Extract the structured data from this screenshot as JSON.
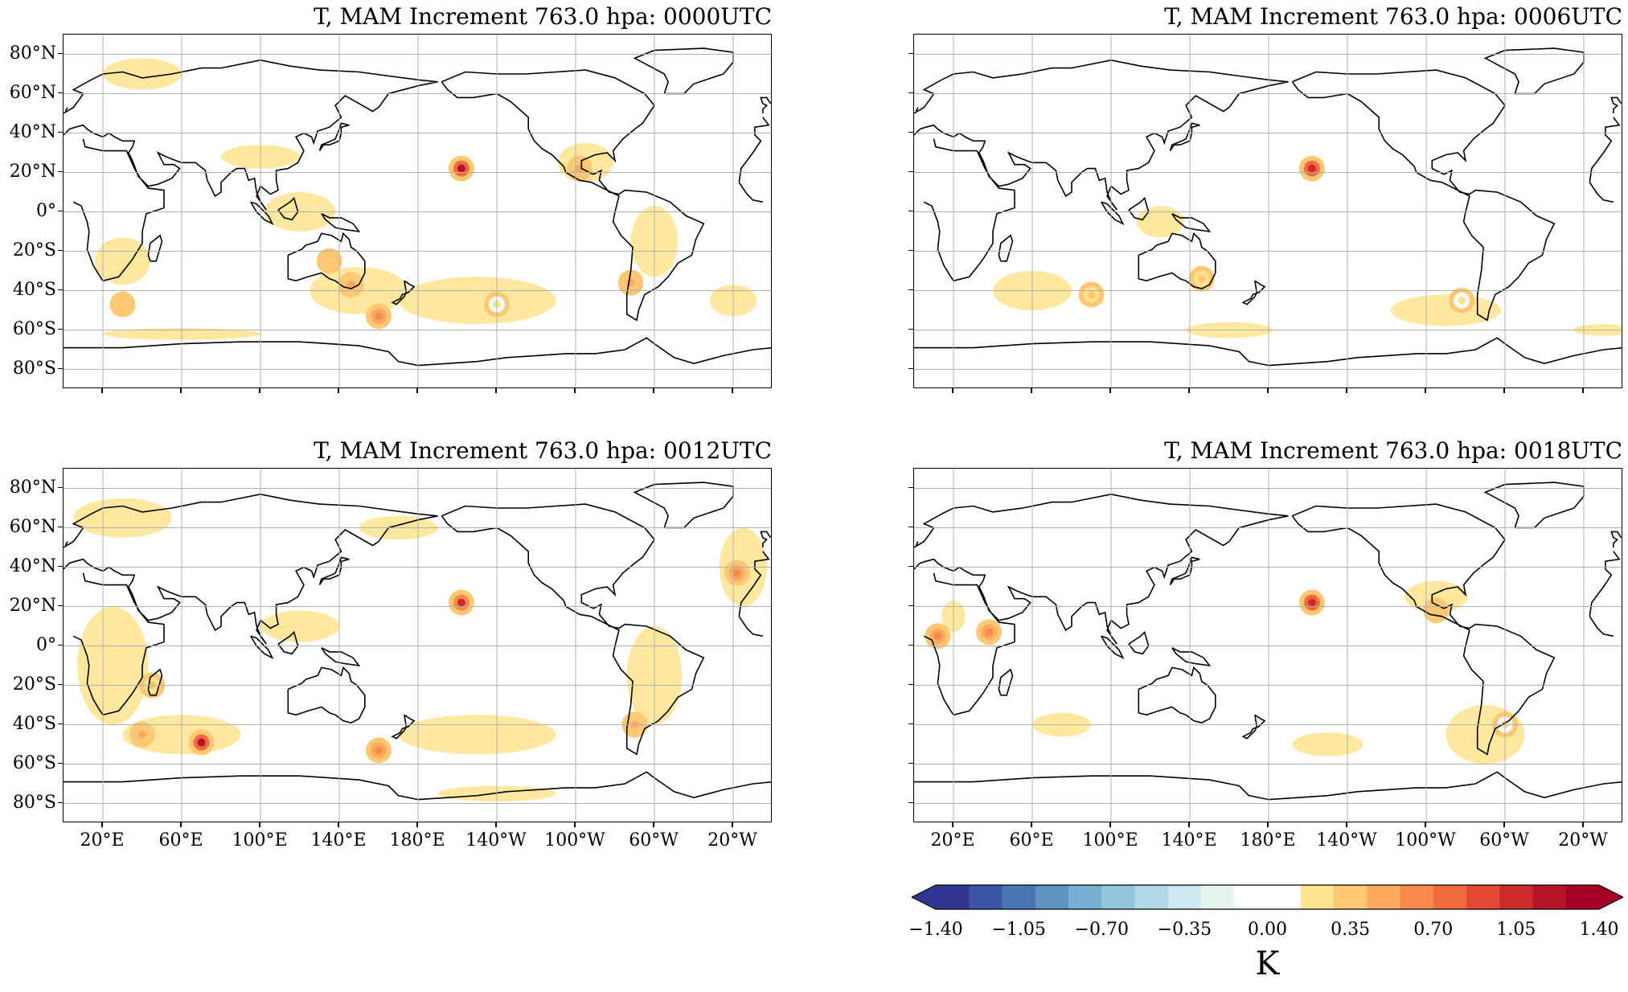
{
  "panels": [
    {
      "title": "T, MAM Increment 763.0 hpa: 0000UTC",
      "show_lon_labels": false,
      "show_lat_labels": true
    },
    {
      "title": "T, MAM Increment 763.0 hpa: 0006UTC",
      "show_lon_labels": false,
      "show_lat_labels": false
    },
    {
      "title": "T, MAM Increment 763.0 hpa: 0012UTC",
      "show_lon_labels": true,
      "show_lat_labels": true
    },
    {
      "title": "T, MAM Increment 763.0 hpa: 0018UTC",
      "show_lon_labels": true,
      "show_lat_labels": false
    }
  ],
  "lat_labels": [
    "80°N",
    "60°N",
    "40°N",
    "20°N",
    "0°",
    "20°S",
    "40°S",
    "60°S",
    "80°S"
  ],
  "lon_labels": [
    "20°E",
    "60°E",
    "100°E",
    "140°E",
    "180°E",
    "140°W",
    "100°W",
    "60°W",
    "20°W"
  ],
  "colorbar": {
    "unit": "K",
    "tick_labels": [
      "−1.40",
      "−1.05",
      "−0.70",
      "−0.35",
      "0.00",
      "0.35",
      "0.70",
      "1.05",
      "1.40"
    ],
    "colors": [
      "#313695",
      "#3a55a3",
      "#4a74b4",
      "#5f93c2",
      "#77aed3",
      "#93c5df",
      "#b0d9e8",
      "#cde8ef",
      "#e6f4f0",
      "#ffffff",
      "#ffffff",
      "#fee48f",
      "#fdc874",
      "#fcaa60",
      "#f98a4e",
      "#f06a40",
      "#e24a33",
      "#cb2b29",
      "#b31427",
      "#a50026"
    ],
    "extend": "both"
  },
  "chart_data": [
    {
      "type": "heatmap",
      "title": "T, MAM Increment 763.0 hpa: 0000UTC",
      "unit": "K",
      "vmin": -1.4,
      "vmax": 1.4,
      "features": [
        {
          "lon": -158,
          "lat": 22,
          "value": 1.2
        },
        {
          "lon": 146,
          "lat": -37,
          "value": 0.5
        },
        {
          "lon": 160,
          "lat": -53,
          "value": 0.7
        },
        {
          "lon": -98,
          "lat": 22,
          "value": 0.5
        },
        {
          "lon": -72,
          "lat": -36,
          "value": 0.5
        },
        {
          "lon": 135,
          "lat": -25,
          "value": 0.4
        },
        {
          "lon": -140,
          "lat": -47,
          "value": 0.2
        },
        {
          "lon": 30,
          "lat": -47,
          "value": 0.4
        }
      ]
    },
    {
      "type": "heatmap",
      "title": "T, MAM Increment 763.0 hpa: 0006UTC",
      "unit": "K",
      "vmin": -1.4,
      "vmax": 1.4,
      "features": [
        {
          "lon": -158,
          "lat": 22,
          "value": 1.1
        },
        {
          "lon": 90,
          "lat": -42,
          "value": 0.3
        },
        {
          "lon": -82,
          "lat": -45,
          "value": 0.2
        },
        {
          "lon": 146,
          "lat": -34,
          "value": 0.3
        }
      ]
    },
    {
      "type": "heatmap",
      "title": "T, MAM Increment 763.0 hpa: 0012UTC",
      "unit": "K",
      "vmin": -1.4,
      "vmax": 1.4,
      "features": [
        {
          "lon": -158,
          "lat": 22,
          "value": 1.0
        },
        {
          "lon": 70,
          "lat": -49,
          "value": 1.2
        },
        {
          "lon": 160,
          "lat": -53,
          "value": 0.7
        },
        {
          "lon": -70,
          "lat": -40,
          "value": 0.5
        },
        {
          "lon": 40,
          "lat": -45,
          "value": 0.5
        },
        {
          "lon": -18,
          "lat": 37,
          "value": 0.6
        },
        {
          "lon": 45,
          "lat": -20,
          "value": 0.3
        }
      ]
    },
    {
      "type": "heatmap",
      "title": "T, MAM Increment 763.0 hpa: 0018UTC",
      "unit": "K",
      "vmin": -1.4,
      "vmax": 1.4,
      "features": [
        {
          "lon": -158,
          "lat": 22,
          "value": 1.1
        },
        {
          "lon": 12,
          "lat": 5,
          "value": 0.7
        },
        {
          "lon": 38,
          "lat": 7,
          "value": 0.6
        },
        {
          "lon": -60,
          "lat": -40,
          "value": 0.2
        },
        {
          "lon": -95,
          "lat": 18,
          "value": 0.4
        }
      ]
    }
  ]
}
